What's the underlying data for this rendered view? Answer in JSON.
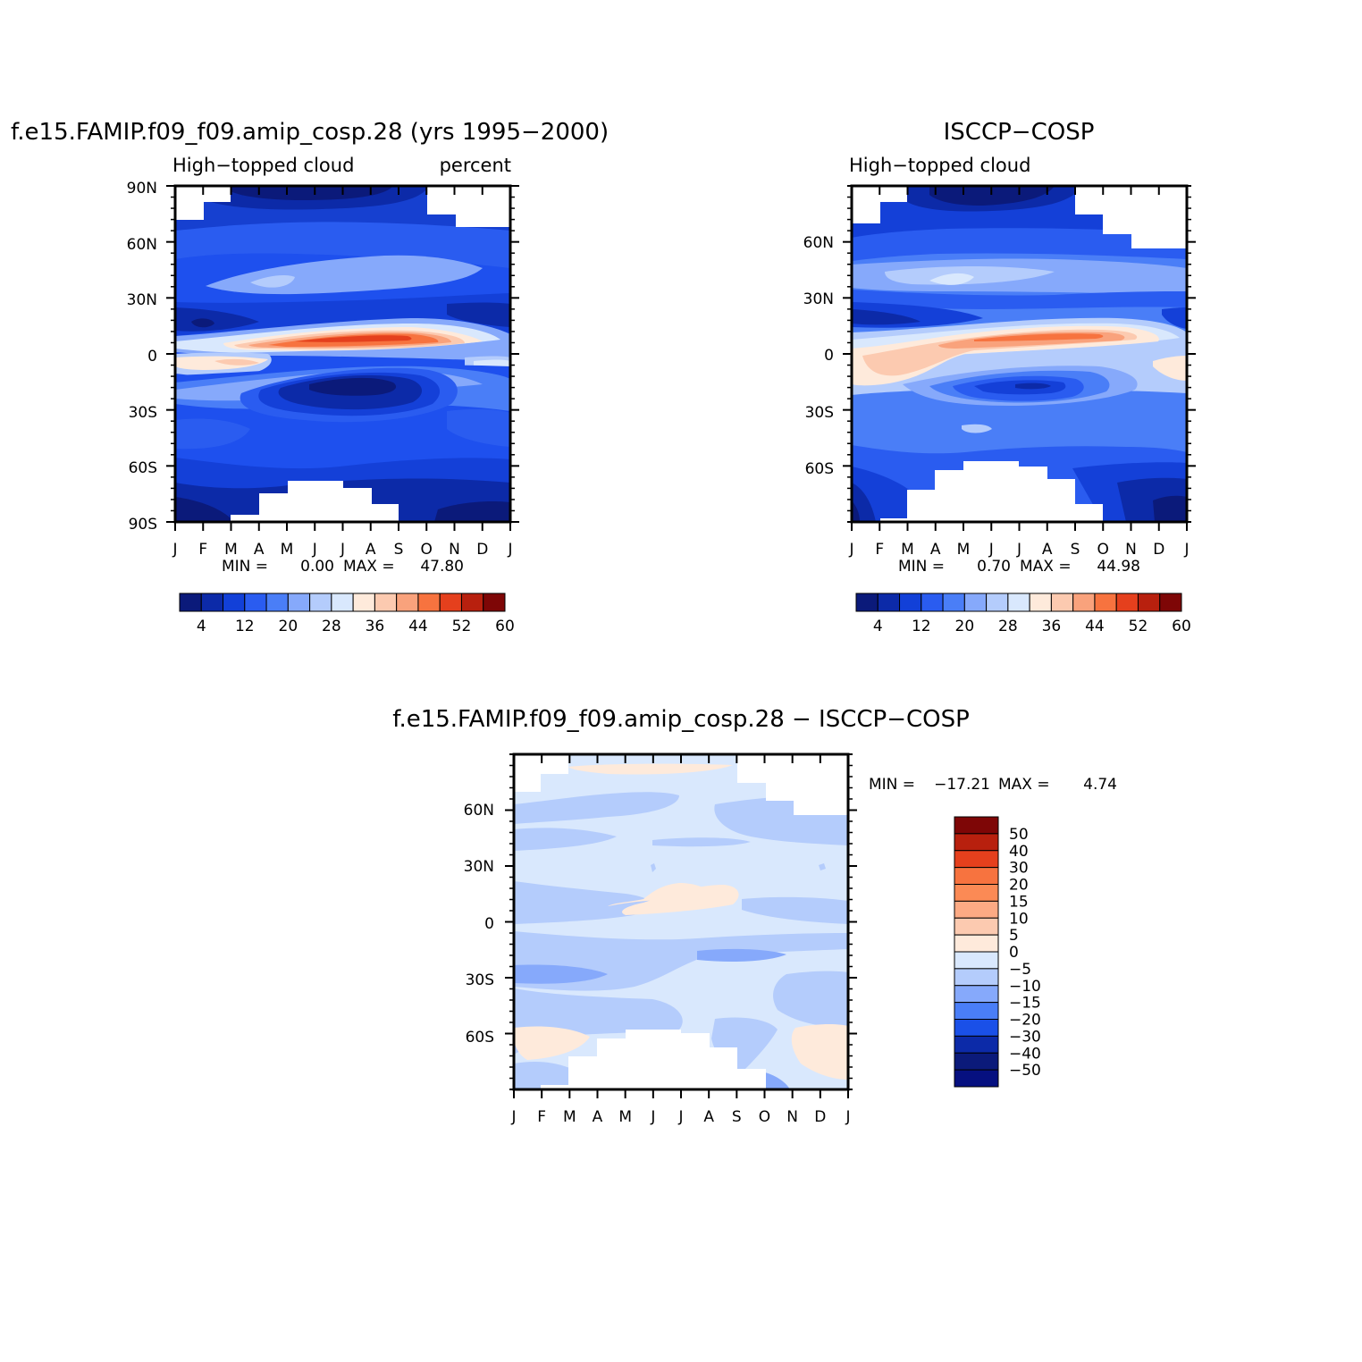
{
  "months": [
    "J",
    "F",
    "M",
    "A",
    "M",
    "J",
    "J",
    "A",
    "S",
    "O",
    "N",
    "D",
    "J"
  ],
  "chart_data": [
    {
      "id": "model",
      "type": "contour",
      "title": "f.e15.FAMIP.f09_f09.amip_cosp.28 (yrs 1995−2000)",
      "left_label": "High−topped cloud",
      "right_label": "percent",
      "lat_ticks": [
        "90N",
        "60N",
        "30N",
        "0",
        "30S",
        "60S",
        "90S"
      ],
      "stats": {
        "min_label": "MIN =",
        "min": "0.00",
        "max_label": "MAX =",
        "max": "47.80"
      },
      "colorbar": {
        "orientation": "horizontal",
        "levels": [
          "4",
          "12",
          "20",
          "28",
          "36",
          "44",
          "52",
          "60"
        ],
        "colors": [
          "#0b1a7a",
          "#0c2aa8",
          "#1240d8",
          "#2a5cf0",
          "#4a7ef7",
          "#86a9fb",
          "#b4ccfc",
          "#d9e8fd",
          "#feeadb",
          "#fccab0",
          "#f9a27c",
          "#f7733f",
          "#e5401d",
          "#b8200e",
          "#7e0606"
        ]
      }
    },
    {
      "id": "obs",
      "type": "contour",
      "title": "ISCCP−COSP",
      "left_label": "High−topped cloud",
      "lat_ticks": [
        "60N",
        "30N",
        "0",
        "30S",
        "60S"
      ],
      "stats": {
        "min_label": "MIN =",
        "min": "0.70",
        "max_label": "MAX =",
        "max": "44.98"
      },
      "colorbar": {
        "orientation": "horizontal",
        "levels": [
          "4",
          "12",
          "20",
          "28",
          "36",
          "44",
          "52",
          "60"
        ],
        "colors": [
          "#0b1a7a",
          "#0c2aa8",
          "#1240d8",
          "#2a5cf0",
          "#4a7ef7",
          "#86a9fb",
          "#b4ccfc",
          "#d9e8fd",
          "#feeadb",
          "#fccab0",
          "#f9a27c",
          "#f7733f",
          "#e5401d",
          "#b8200e",
          "#7e0606"
        ]
      }
    },
    {
      "id": "diff",
      "type": "contour",
      "title": "f.e15.FAMIP.f09_f09.amip_cosp.28 − ISCCP−COSP",
      "lat_ticks": [
        "60N",
        "30N",
        "0",
        "30S",
        "60S"
      ],
      "stats": {
        "min_label": "MIN = ",
        "min": "−17.21",
        "max_label": "MAX =",
        "max": "4.74"
      },
      "colorbar": {
        "orientation": "vertical",
        "levels": [
          "50",
          "40",
          "30",
          "20",
          "15",
          "10",
          "5",
          "0",
          "−5",
          "−10",
          "−15",
          "−20",
          "−30",
          "−40",
          "−50"
        ],
        "colors": [
          "#7e0606",
          "#b8200e",
          "#e5401d",
          "#f7733f",
          "#fb8a55",
          "#fcaa84",
          "#fccab0",
          "#feeadb",
          "#d9e8fd",
          "#b4ccfc",
          "#86a9fb",
          "#4a7ef7",
          "#1a50e8",
          "#0c2aa8",
          "#0b1a7a",
          "#061080"
        ]
      }
    }
  ]
}
